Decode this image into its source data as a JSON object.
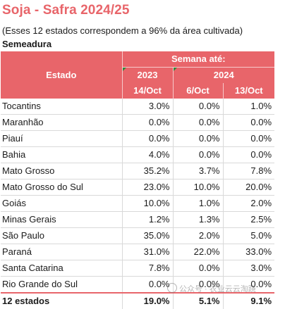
{
  "title": "Soja - Safra 2024/25",
  "subtitle": "(Esses 12 estados correspondem a 96% da área cultivada)",
  "section": "Semeadura",
  "colors": {
    "accent": "#e8656a",
    "header_text": "#ffffff"
  },
  "table": {
    "state_header": "Estado",
    "week_header": "Semana até:",
    "years": [
      "2023",
      "2024"
    ],
    "dates": [
      "14/Oct",
      "6/Oct",
      "13/Oct"
    ],
    "rows": [
      {
        "state": "Tocantins",
        "values": [
          "3.0%",
          "0.0%",
          "1.0%"
        ]
      },
      {
        "state": "Maranhão",
        "values": [
          "0.0%",
          "0.0%",
          "0.0%"
        ]
      },
      {
        "state": "Piauí",
        "values": [
          "0.0%",
          "0.0%",
          "0.0%"
        ]
      },
      {
        "state": "Bahia",
        "values": [
          "4.0%",
          "0.0%",
          "0.0%"
        ]
      },
      {
        "state": "Mato Grosso",
        "values": [
          "35.2%",
          "3.7%",
          "7.8%"
        ]
      },
      {
        "state": "Mato Grosso do Sul",
        "values": [
          "23.0%",
          "10.0%",
          "20.0%"
        ]
      },
      {
        "state": "Goiás",
        "values": [
          "10.0%",
          "1.0%",
          "2.0%"
        ]
      },
      {
        "state": "Minas Gerais",
        "values": [
          "1.2%",
          "1.3%",
          "2.5%"
        ]
      },
      {
        "state": "São Paulo",
        "values": [
          "35.0%",
          "2.0%",
          "5.0%"
        ]
      },
      {
        "state": "Paraná",
        "values": [
          "31.0%",
          "22.0%",
          "33.0%"
        ]
      },
      {
        "state": "Santa Catarina",
        "values": [
          "7.8%",
          "0.0%",
          "3.0%"
        ]
      },
      {
        "state": "Rio Grande do Sul",
        "values": [
          "0.0%",
          "0.0%",
          "0.0%"
        ]
      }
    ],
    "total": {
      "state": "12 estados",
      "values": [
        "19.0%",
        "5.1%",
        "9.1%"
      ]
    }
  },
  "watermark": {
    "icon": "wechat-icon",
    "text": "公众号 · 农业云云淘跷"
  }
}
